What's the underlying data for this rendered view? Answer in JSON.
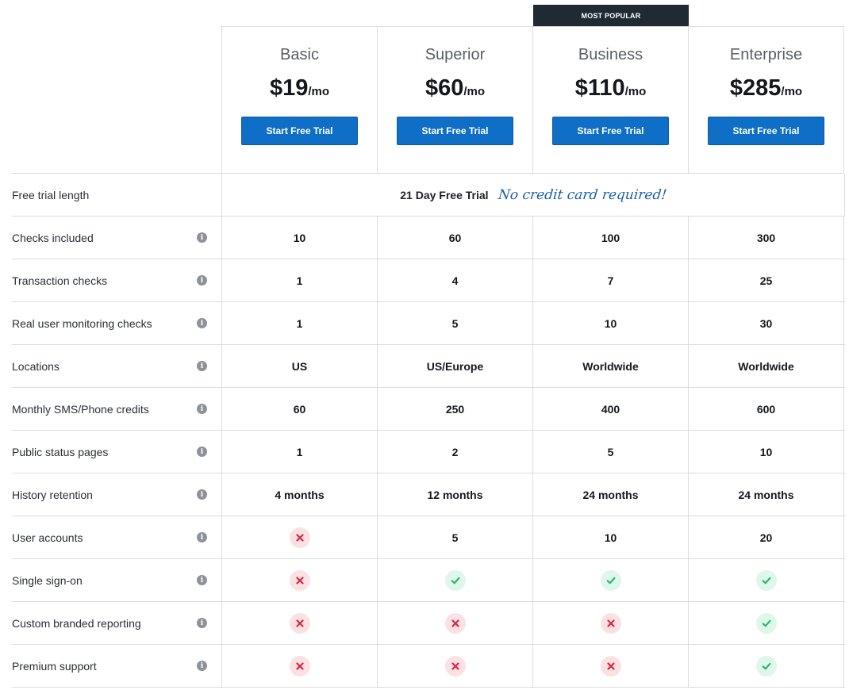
{
  "badge": "MOST POPULAR",
  "plans": [
    {
      "name": "Basic",
      "price": "$19",
      "per": "/mo",
      "cta": "Start Free Trial"
    },
    {
      "name": "Superior",
      "price": "$60",
      "per": "/mo",
      "cta": "Start Free Trial"
    },
    {
      "name": "Business",
      "price": "$110",
      "per": "/mo",
      "cta": "Start Free Trial"
    },
    {
      "name": "Enterprise",
      "price": "$285",
      "per": "/mo",
      "cta": "Start Free Trial"
    }
  ],
  "trial": {
    "label": "Free trial length",
    "value": "21 Day Free Trial",
    "note": "No credit card required!"
  },
  "rows": [
    {
      "label": "Checks included",
      "cells": [
        "10",
        "60",
        "100",
        "300"
      ]
    },
    {
      "label": "Transaction checks",
      "cells": [
        "1",
        "4",
        "7",
        "25"
      ]
    },
    {
      "label": "Real user monitoring checks",
      "cells": [
        "1",
        "5",
        "10",
        "30"
      ]
    },
    {
      "label": "Locations",
      "cells": [
        "US",
        "US/Europe",
        "Worldwide",
        "Worldwide"
      ]
    },
    {
      "label": "Monthly SMS/Phone credits",
      "cells": [
        "60",
        "250",
        "400",
        "600"
      ]
    },
    {
      "label": "Public status pages",
      "cells": [
        "1",
        "2",
        "5",
        "10"
      ]
    },
    {
      "label": "History retention",
      "cells": [
        "4 months",
        "12 months",
        "24 months",
        "24 months"
      ]
    },
    {
      "label": "User accounts",
      "cells": [
        "no",
        "5",
        "10",
        "20"
      ]
    },
    {
      "label": "Single sign-on",
      "cells": [
        "no",
        "yes",
        "yes",
        "yes"
      ]
    },
    {
      "label": "Custom branded reporting",
      "cells": [
        "no",
        "no",
        "no",
        "yes"
      ]
    },
    {
      "label": "Premium support",
      "cells": [
        "no",
        "no",
        "no",
        "yes"
      ]
    }
  ],
  "icons": {
    "info": "info-icon",
    "yes": "check-icon",
    "no": "cross-icon"
  },
  "colors": {
    "button": "#0f6fc6",
    "badge_bg": "#1f2a33",
    "check": "#2bb673",
    "cross": "#d6283f",
    "script": "#1b5ea9"
  }
}
